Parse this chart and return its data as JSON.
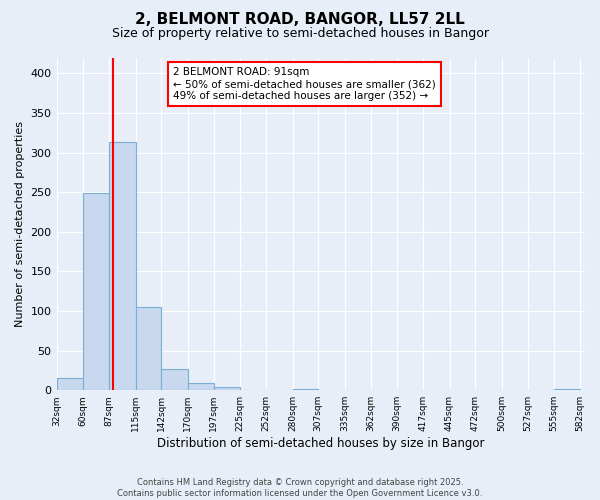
{
  "title": "2, BELMONT ROAD, BANGOR, LL57 2LL",
  "subtitle": "Size of property relative to semi-detached houses in Bangor",
  "xlabel": "Distribution of semi-detached houses by size in Bangor",
  "ylabel": "Number of semi-detached properties",
  "bins": [
    32,
    60,
    87,
    115,
    142,
    170,
    197,
    225,
    252,
    280,
    307,
    335,
    362,
    390,
    417,
    445,
    472,
    500,
    527,
    555,
    582
  ],
  "counts": [
    15,
    249,
    313,
    105,
    27,
    9,
    4,
    0,
    0,
    2,
    0,
    0,
    0,
    0,
    0,
    0,
    0,
    0,
    0,
    1
  ],
  "bar_color": "#c8d8ee",
  "bar_edge_color": "#7aafd4",
  "vline_x": 91,
  "vline_color": "red",
  "annotation_title": "2 BELMONT ROAD: 91sqm",
  "annotation_line1": "← 50% of semi-detached houses are smaller (362)",
  "annotation_line2": "49% of semi-detached houses are larger (352) →",
  "annotation_box_color": "white",
  "annotation_box_edge_color": "red",
  "ylim": [
    0,
    420
  ],
  "yticks": [
    0,
    50,
    100,
    150,
    200,
    250,
    300,
    350,
    400
  ],
  "footer_line1": "Contains HM Land Registry data © Crown copyright and database right 2025.",
  "footer_line2": "Contains public sector information licensed under the Open Government Licence v3.0.",
  "bg_color": "#e8eef8",
  "grid_color": "white"
}
